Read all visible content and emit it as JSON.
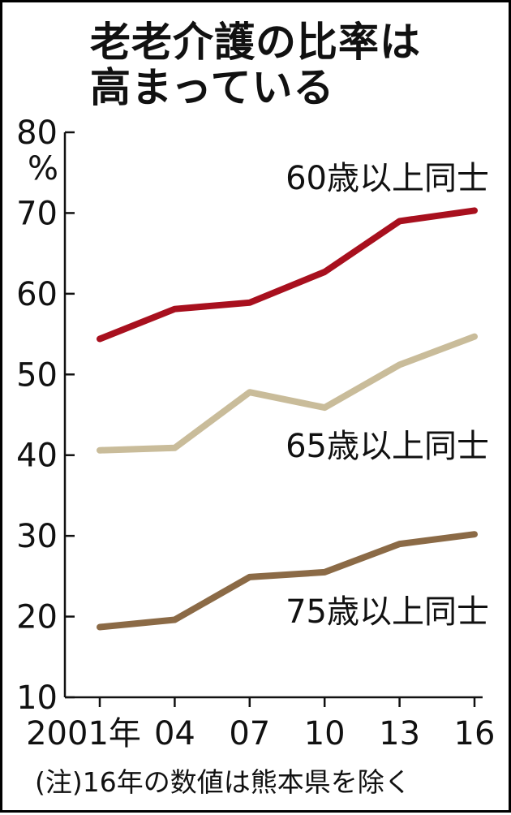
{
  "title_lines": [
    "老老介護の比率は",
    "高まっている"
  ],
  "note": "(注)16年の数値は熊本県を除く",
  "colors": {
    "series_60": "#a8101e",
    "series_65": "#c9bc9a",
    "series_75": "#8b6a46",
    "axis": "#111111"
  },
  "chart_data": {
    "type": "line",
    "title": "老老介護の比率は高まっている",
    "x": [
      "2001年",
      "04",
      "07",
      "10",
      "13",
      "16"
    ],
    "y_unit": "%",
    "ylim": [
      10,
      80
    ],
    "y_ticks": [
      10,
      20,
      30,
      40,
      50,
      60,
      70,
      80
    ],
    "y_tick_labels": [
      "10",
      "20",
      "30",
      "40",
      "50",
      "60",
      "70",
      "80"
    ],
    "grid": false,
    "legend": "inline labels",
    "series": [
      {
        "name": "60歳以上同士",
        "values": [
          54.4,
          58.1,
          58.9,
          62.7,
          69.0,
          70.3
        ]
      },
      {
        "name": "65歳以上同士",
        "values": [
          40.6,
          40.9,
          47.8,
          45.9,
          51.2,
          54.7
        ]
      },
      {
        "name": "75歳以上同士",
        "values": [
          18.7,
          19.6,
          24.9,
          25.5,
          29.0,
          30.2
        ]
      }
    ]
  }
}
